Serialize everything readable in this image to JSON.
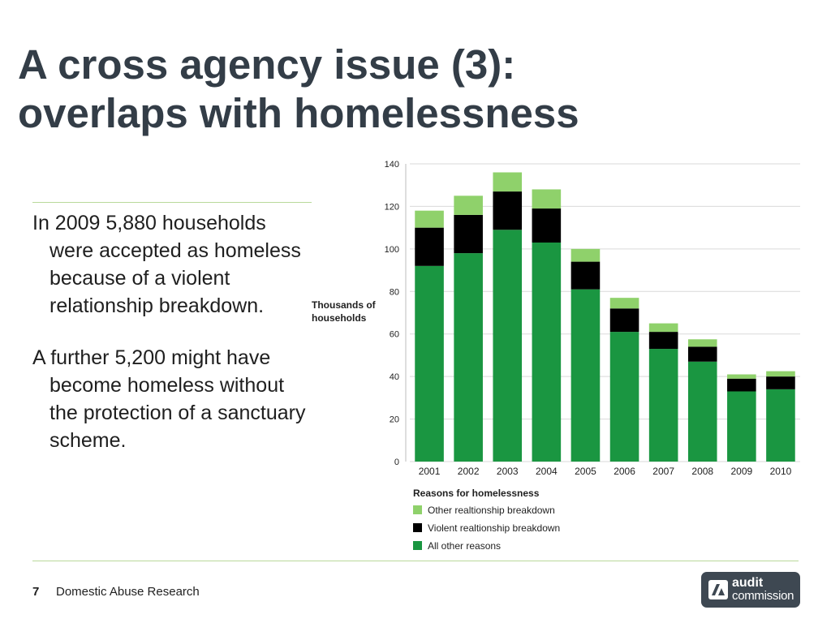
{
  "slide": {
    "title_line1": "A cross agency issue (3):",
    "title_line2": "overlaps with homelessness",
    "paragraphs": [
      "In 2009 5,880 households were accepted as homeless because of a violent relationship breakdown.",
      "A further 5,200 might have become homeless without the protection of a sanctuary scheme."
    ],
    "footer": {
      "page_number": "7",
      "text": "Domestic Abuse Research"
    },
    "logo": {
      "line1": "audit",
      "line2": "commission"
    }
  },
  "chart_data": {
    "type": "bar",
    "stacked": true,
    "title": "",
    "ylabel_line1": "Thousands of",
    "ylabel_line2": "households",
    "xlabel": "",
    "ylim": [
      0,
      140
    ],
    "yticks": [
      0,
      20,
      40,
      60,
      80,
      100,
      120,
      140
    ],
    "categories": [
      "2001",
      "2002",
      "2003",
      "2004",
      "2005",
      "2006",
      "2007",
      "2008",
      "2009",
      "2010"
    ],
    "legend_title": "Reasons for homelessness",
    "legend_position": "bottom-left",
    "grid": true,
    "series": [
      {
        "name": "All other reasons",
        "color": "#1a9641",
        "values": [
          92,
          98,
          109,
          103,
          81,
          61,
          53,
          47,
          33,
          34
        ]
      },
      {
        "name": "Violent realtionship breakdown",
        "color": "#000000",
        "values": [
          18,
          18,
          18,
          16,
          13,
          11,
          8,
          7,
          6,
          6
        ]
      },
      {
        "name": "Other realtionship breakdown",
        "color": "#8fd16b",
        "values": [
          8,
          9,
          9,
          9,
          6,
          5,
          4,
          3.5,
          2,
          2.5
        ]
      }
    ],
    "legend_order": [
      2,
      1,
      0
    ]
  }
}
